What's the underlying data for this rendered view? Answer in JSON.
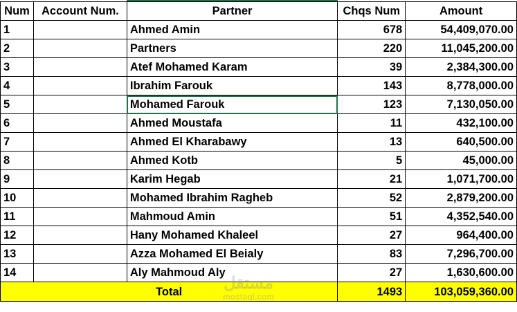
{
  "headers": {
    "num": "Num",
    "account": "Account Num.",
    "partner": "Partner",
    "chqs": "Chqs Num",
    "amount": "Amount"
  },
  "rows": [
    {
      "num": "1",
      "account": "",
      "partner": "Ahmed Amin",
      "chqs": "678",
      "amount": "54,409,070.00"
    },
    {
      "num": "2",
      "account": "",
      "partner": "Partners",
      "chqs": "220",
      "amount": "11,045,200.00"
    },
    {
      "num": "3",
      "account": "",
      "partner": "Atef Mohamed Karam",
      "chqs": "39",
      "amount": "2,384,300.00"
    },
    {
      "num": "4",
      "account": "",
      "partner": "Ibrahim Farouk",
      "chqs": "143",
      "amount": "8,778,000.00"
    },
    {
      "num": "5",
      "account": "",
      "partner": "Mohamed Farouk",
      "chqs": "123",
      "amount": "7,130,050.00"
    },
    {
      "num": "6",
      "account": "",
      "partner": "Ahmed Moustafa",
      "chqs": "11",
      "amount": "432,100.00"
    },
    {
      "num": "7",
      "account": "",
      "partner": "Ahmed El Kharabawy",
      "chqs": "13",
      "amount": "640,500.00"
    },
    {
      "num": "8",
      "account": "",
      "partner": "Ahmed Kotb",
      "chqs": "5",
      "amount": "45,000.00"
    },
    {
      "num": "9",
      "account": "",
      "partner": "Karim Hegab",
      "chqs": "21",
      "amount": "1,071,700.00"
    },
    {
      "num": "10",
      "account": "",
      "partner": "Mohamed Ibrahim Ragheb",
      "chqs": "52",
      "amount": "2,879,200.00"
    },
    {
      "num": "11",
      "account": "",
      "partner": "Mahmoud Amin",
      "chqs": "51",
      "amount": "4,352,540.00"
    },
    {
      "num": "12",
      "account": "",
      "partner": "Hany Mohamed Khaleel",
      "chqs": "27",
      "amount": "964,400.00"
    },
    {
      "num": "13",
      "account": "",
      "partner": "Azza Mohamed El Beialy",
      "chqs": "83",
      "amount": "7,296,700.00"
    },
    {
      "num": "14",
      "account": "",
      "partner": "Aly Mahmoud Aly",
      "chqs": "27",
      "amount": "1,630,600.00"
    }
  ],
  "total": {
    "label": "Total",
    "chqs": "1493",
    "amount": "103,059,360.00"
  },
  "selected_cell": "Mohamed Farouk",
  "watermark": {
    "arabic": "مستقل",
    "latin": "mostaql.com"
  },
  "colors": {
    "total_bg": "#ffff00",
    "selection": "#217346"
  }
}
